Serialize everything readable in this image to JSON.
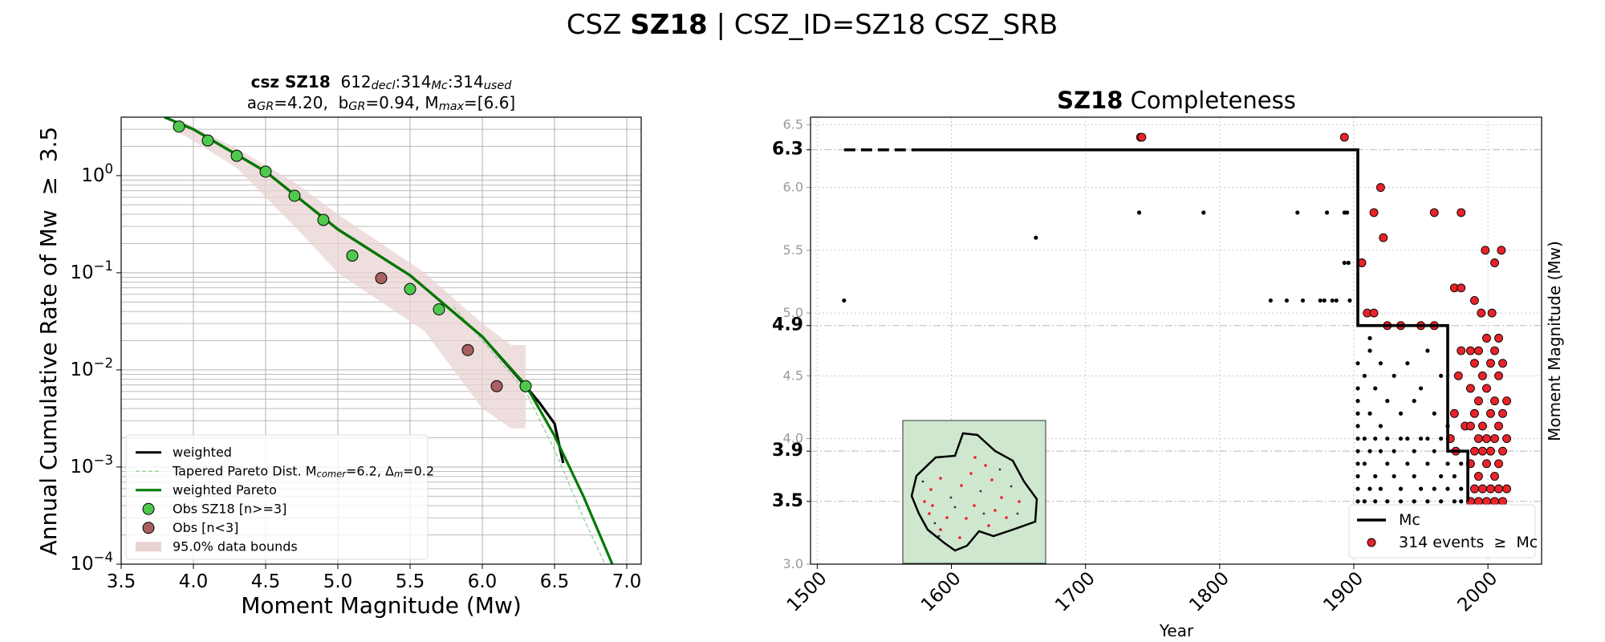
{
  "title": "CSZ **SZ18** | CSZ_ID=SZ18 CSZ_SRB",
  "chart_data": [
    {
      "type": "line",
      "title_lines": [
        "**csz SZ18**  612_{decl}:314_{Mc}:314_{used}",
        "a_{GR}=4.20,  b_{GR}=0.94, M_{max}=[6.6]"
      ],
      "xlabel": "Moment Magnitude (Mw)",
      "ylabel": "Annual Cumulative Rate of Mw  ≥  3.5",
      "xlim": [
        3.5,
        7.1
      ],
      "xticks": [
        3.5,
        {
          "value": 4,
          "label": "4.0"
        },
        4.5,
        {
          "value": 5,
          "label": "5.0"
        },
        5.5,
        {
          "value": 6,
          "label": "6.0"
        },
        6.5,
        {
          "value": 7,
          "label": "7.0"
        }
      ],
      "ylim": [
        0.0001,
        4
      ],
      "yscale": "log",
      "yticks": [
        {
          "value": 0.0001,
          "label": "10^{−4}"
        },
        {
          "value": 0.001,
          "label": "10^{−3}"
        },
        {
          "value": 0.01,
          "label": "10^{−2}"
        },
        {
          "value": 0.1,
          "label": "10^{−1}"
        },
        {
          "value": 1,
          "label": "10^{0}"
        }
      ],
      "grid": true,
      "minor_grid": true,
      "legend": "lower left",
      "series": [
        {
          "name": "weighted",
          "kind": "line",
          "color": "#000000",
          "x": [
            3.8,
            4.0,
            4.5,
            5.0,
            5.5,
            6.0,
            6.3,
            6.4,
            6.5,
            6.56
          ],
          "values": [
            4.0,
            3.0,
            1.1,
            0.28,
            0.094,
            0.022,
            0.0068,
            0.0045,
            0.0028,
            0.0011
          ]
        },
        {
          "name": "Tapered Pareto Dist. M_{comer}=6.2, Δ_{m}=0.2",
          "kind": "line",
          "dashed": true,
          "color": "#8fcf8f",
          "x": [
            5.8,
            6.0,
            6.3,
            6.5,
            6.7,
            6.85
          ],
          "values": [
            0.045,
            0.02,
            0.006,
            0.0015,
            0.0003,
            0.0001
          ]
        },
        {
          "name": "weighted Pareto",
          "kind": "line",
          "color": "#007a00",
          "x": [
            3.8,
            4.0,
            4.5,
            5.0,
            5.5,
            6.0,
            6.3,
            6.5,
            6.7,
            6.9
          ],
          "values": [
            4.0,
            3.0,
            1.1,
            0.28,
            0.094,
            0.022,
            0.007,
            0.0021,
            0.0005,
            0.0001
          ]
        },
        {
          "name": "Obs SZ18 [n>=3]",
          "kind": "scatter",
          "color": "#4ec94e",
          "x": [
            3.9,
            4.1,
            4.3,
            4.5,
            4.7,
            4.9,
            5.1,
            5.5,
            5.7,
            6.3
          ],
          "values": [
            3.2,
            2.3,
            1.6,
            1.1,
            0.62,
            0.35,
            0.15,
            0.068,
            0.042,
            0.0068
          ]
        },
        {
          "name": "Obs [n<3]",
          "kind": "scatter",
          "color": "#a86060",
          "x": [
            5.3,
            5.9,
            6.1
          ],
          "values": [
            0.088,
            0.016,
            0.0068
          ]
        },
        {
          "name": "95.0% data bounds",
          "kind": "band",
          "color": "#e9d3d3",
          "x": [
            3.9,
            4.3,
            4.7,
            5.0,
            5.3,
            5.6,
            6.0,
            6.2,
            6.3
          ],
          "upper": [
            3.8,
            1.9,
            0.85,
            0.4,
            0.2,
            0.1,
            0.03,
            0.018,
            0.018
          ],
          "lower": [
            2.8,
            1.2,
            0.3,
            0.1,
            0.05,
            0.025,
            0.004,
            0.0025,
            0.0025
          ]
        }
      ]
    },
    {
      "type": "scatter",
      "title": "**SZ18** Completeness",
      "xlabel": "Year",
      "ylabel": "Moment Magnitude (Mw)",
      "xlim": [
        1495,
        2040
      ],
      "xticks": [
        1500,
        1600,
        1700,
        1800,
        1900,
        2000
      ],
      "ylim": [
        3.0,
        6.56
      ],
      "yticks": [
        {
          "value": 3,
          "label": "3.0"
        },
        {
          "value": 4,
          "label": "4.0"
        },
        4.5,
        {
          "value": 5,
          "label": "5.0"
        },
        5.5,
        {
          "value": 6,
          "label": "6.0"
        },
        6.5
      ],
      "mc_ticks": [
        6.3,
        4.9,
        3.9,
        3.5
      ],
      "grid": true,
      "legend": "lower right",
      "all_events": {
        "color": "#000000",
        "x": [
          1520,
          1663,
          1740,
          1788,
          1838,
          1850,
          1858,
          1862,
          1875,
          1878,
          1880,
          1884,
          1887,
          1893,
          1895,
          1893,
          1896,
          1897,
          1903,
          1903,
          1903,
          1903,
          1903,
          1903,
          1903,
          1903,
          1903,
          1903,
          1903,
          1908,
          1908,
          1908,
          1908,
          1912,
          1912,
          1912,
          1912,
          1912,
          1916,
          1916,
          1916,
          1916,
          1920,
          1920,
          1920,
          1920,
          1925,
          1925,
          1925,
          1925,
          1930,
          1930,
          1930,
          1935,
          1935,
          1935,
          1935,
          1940,
          1940,
          1940,
          1945,
          1945,
          1945,
          1945,
          1950,
          1950,
          1950,
          1955,
          1955,
          1955,
          1955,
          1960,
          1960,
          1960,
          1965,
          1965,
          1965,
          1965,
          1970,
          1970,
          1970,
          1975,
          1975,
          1975,
          1980,
          1980,
          1980
        ],
        "values": [
          5.1,
          5.6,
          5.8,
          5.8,
          5.1,
          5.1,
          5.8,
          5.1,
          5.1,
          5.1,
          5.8,
          5.1,
          5.1,
          5.8,
          5.8,
          5.4,
          5.4,
          5.1,
          3.5,
          3.6,
          3.7,
          3.8,
          3.9,
          4.0,
          4.1,
          4.2,
          4.3,
          4.4,
          4.6,
          3.5,
          3.8,
          4.0,
          4.5,
          3.6,
          3.9,
          4.2,
          4.7,
          4.8,
          3.5,
          3.7,
          4.0,
          4.4,
          3.6,
          3.9,
          4.1,
          4.6,
          3.5,
          3.8,
          4.0,
          4.3,
          3.7,
          3.9,
          4.5,
          3.5,
          3.6,
          4.0,
          4.2,
          3.8,
          4.0,
          4.6,
          3.5,
          3.7,
          3.9,
          4.3,
          3.6,
          4.0,
          4.4,
          3.5,
          3.8,
          4.0,
          4.7,
          3.6,
          3.9,
          4.2,
          3.5,
          3.7,
          4.0,
          4.5,
          3.6,
          3.8,
          4.1,
          3.5,
          3.7,
          3.9,
          3.5,
          3.6,
          3.8
        ]
      },
      "series": [
        {
          "name": "Mc",
          "kind": "line",
          "color": "#000000",
          "dashed_start": true,
          "x": [
            1520,
            1575,
            1903,
            1903,
            1970,
            1970,
            1985,
            1985
          ],
          "values": [
            6.3,
            6.3,
            6.3,
            4.9,
            4.9,
            3.9,
            3.9,
            3.5
          ]
        },
        {
          "name": "314 events  ≥  Mc",
          "kind": "scatter",
          "color": "#e8232a",
          "x": [
            1741,
            1742,
            1893,
            1920,
            1915,
            1960,
            1980,
            1922,
            1906,
            1998,
            2010,
            2005,
            1975,
            1980,
            1990,
            1910,
            1915,
            1925,
            1935,
            1950,
            1960,
            1995,
            2003,
            2008,
            1972,
            1975,
            1978,
            1980,
            1983,
            1976,
            1987,
            1987,
            1987,
            1987,
            1987,
            1990,
            1990,
            1990,
            1990,
            1993,
            1993,
            1993,
            1993,
            1993,
            1996,
            1996,
            1996,
            1996,
            1999,
            1999,
            1999,
            1999,
            1999,
            2002,
            2002,
            2002,
            2002,
            2005,
            2005,
            2005,
            2005,
            2005,
            2008,
            2008,
            2008,
            2008,
            2011,
            2011,
            2011,
            2011,
            2014,
            2014,
            2014
          ],
          "values": [
            6.4,
            6.4,
            6.4,
            6.0,
            5.8,
            5.8,
            5.8,
            5.6,
            5.4,
            5.5,
            5.5,
            5.4,
            5.2,
            5.2,
            5.1,
            5.0,
            5.0,
            4.9,
            4.9,
            4.9,
            4.9,
            5.0,
            5.0,
            4.8,
            4.0,
            4.2,
            4.5,
            4.7,
            4.1,
            3.9,
            3.5,
            3.8,
            4.1,
            4.4,
            4.7,
            3.6,
            3.9,
            4.2,
            4.6,
            3.5,
            3.7,
            4.0,
            4.3,
            4.7,
            3.6,
            3.9,
            4.1,
            4.5,
            3.5,
            3.8,
            4.0,
            4.4,
            4.8,
            3.6,
            3.9,
            4.2,
            4.6,
            3.5,
            3.7,
            4.0,
            4.3,
            4.7,
            3.6,
            3.8,
            4.1,
            4.5,
            3.5,
            3.9,
            4.2,
            4.6,
            3.6,
            4.0,
            4.3
          ]
        }
      ]
    }
  ]
}
